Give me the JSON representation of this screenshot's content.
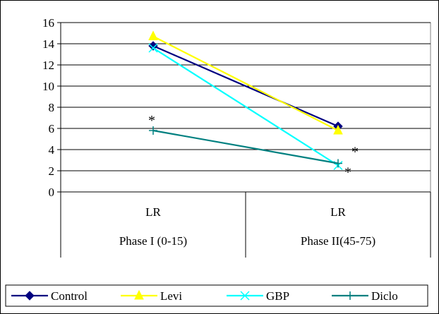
{
  "chart_data": {
    "type": "line",
    "categories": [
      {
        "top": "LR",
        "bottom": "Phase I (0-15)"
      },
      {
        "top": "LR",
        "bottom": "Phase II(45-75)"
      }
    ],
    "ylim": [
      0,
      16
    ],
    "yticks": [
      0,
      2,
      4,
      6,
      8,
      10,
      12,
      14,
      16
    ],
    "grid": true,
    "legend_position": "bottom",
    "series": [
      {
        "name": "Control",
        "values": [
          13.8,
          6.2
        ],
        "color": "#000080",
        "marker": "diamond"
      },
      {
        "name": "Levi",
        "values": [
          14.7,
          5.8
        ],
        "color": "#ffff00",
        "marker": "triangle"
      },
      {
        "name": "GBP",
        "values": [
          13.6,
          2.5
        ],
        "color": "#00ffff",
        "marker": "x"
      },
      {
        "name": "Diclo",
        "values": [
          5.8,
          2.7
        ],
        "color": "#008080",
        "marker": "plus"
      }
    ],
    "annotations": [
      {
        "text": "*",
        "near": {
          "category": 0,
          "value": 5.8
        }
      },
      {
        "text": "*",
        "near": {
          "category": 1,
          "value": 2.7
        }
      },
      {
        "text": "*",
        "near": {
          "category": 1,
          "value": 2.5
        }
      }
    ]
  }
}
